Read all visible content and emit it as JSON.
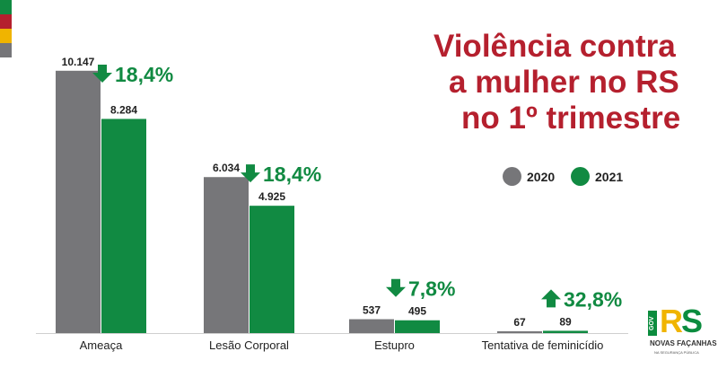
{
  "colors": {
    "title": "#b5202e",
    "series_2020": "#767679",
    "series_2021": "#118a42",
    "change_text": "#118a42",
    "label_text": "#222222",
    "stripes": [
      "#118a42",
      "#b5202e",
      "#f0b400",
      "#767679"
    ]
  },
  "title_lines": [
    "Violência contra",
    "a mulher no RS",
    "no 1º trimestre"
  ],
  "legend": [
    "2020",
    "2021"
  ],
  "chart_data": {
    "type": "bar",
    "categories": [
      "Ameaça",
      "Lesão Corporal",
      "Estupro",
      "Tentativa de feminicídio"
    ],
    "series": [
      {
        "name": "2020",
        "values": [
          10147,
          6034,
          537,
          67
        ],
        "labels": [
          "10.147",
          "6.034",
          "537",
          "67"
        ]
      },
      {
        "name": "2021",
        "values": [
          8284,
          4925,
          495,
          89
        ],
        "labels": [
          "8.284",
          "4.925",
          "495",
          "89"
        ]
      }
    ],
    "changes": [
      {
        "direction": "down",
        "label": "18,4%"
      },
      {
        "direction": "down",
        "label": "18,4%"
      },
      {
        "direction": "down",
        "label": "7,8%"
      },
      {
        "direction": "up",
        "label": "32,8%"
      }
    ],
    "ylim": [
      0,
      10800
    ],
    "grid": false,
    "legend_position": "right",
    "xlabel": "",
    "ylabel": ""
  },
  "logo": {
    "letters": "RS",
    "badge": "GOV",
    "line1": "NOVAS FAÇANHAS",
    "line2": "NA SEGURANÇA PÚBLICA"
  }
}
